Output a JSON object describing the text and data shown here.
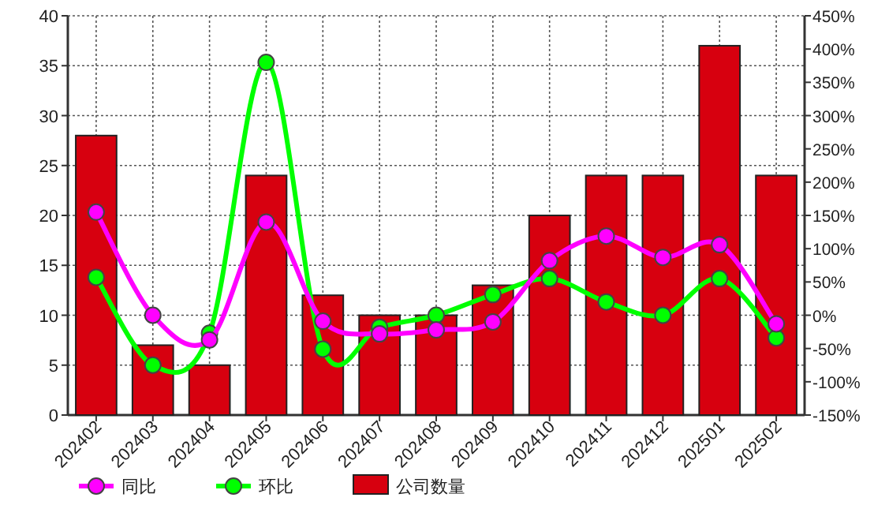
{
  "chart_data": {
    "type": "bar",
    "categories": [
      "202402",
      "202403",
      "202404",
      "202405",
      "202406",
      "202407",
      "202408",
      "202409",
      "202410",
      "202411",
      "202412",
      "202501",
      "202502"
    ],
    "series": [
      {
        "name": "同比",
        "type": "line",
        "axis": "y2",
        "color": "#ff00ff",
        "values": [
          155,
          0,
          -37,
          140,
          -9,
          -28,
          -22,
          -10,
          82,
          119,
          87,
          106,
          -13
        ]
      },
      {
        "name": "环比",
        "type": "line",
        "axis": "y2",
        "color": "#00ff00",
        "values": [
          57,
          -75,
          -27,
          380,
          -51,
          -18,
          0,
          31,
          55,
          20,
          0,
          55,
          -34
        ]
      },
      {
        "name": "公司数量",
        "type": "bar",
        "color": "#d7000f",
        "values": [
          28,
          7,
          5,
          24,
          12,
          10,
          10,
          13,
          20,
          24,
          24,
          37,
          24
        ]
      }
    ],
    "ylim": [
      0,
      40
    ],
    "yticks": [
      0,
      5,
      10,
      15,
      20,
      25,
      30,
      35,
      40
    ],
    "y2lim": [
      -150,
      450
    ],
    "y2ticks": [
      {
        "value": -150,
        "label": "-150%"
      },
      {
        "value": -100,
        "label": "-100%"
      },
      {
        "value": -50,
        "label": "-50%"
      },
      {
        "value": 0,
        "label": "0%"
      },
      {
        "value": 50,
        "label": "50%"
      },
      {
        "value": 100,
        "label": "100%"
      },
      {
        "value": 150,
        "label": "150%"
      },
      {
        "value": 200,
        "label": "200%"
      },
      {
        "value": 250,
        "label": "250%"
      },
      {
        "value": 300,
        "label": "300%"
      },
      {
        "value": 350,
        "label": "350%"
      },
      {
        "value": 400,
        "label": "400%"
      },
      {
        "value": 450,
        "label": "450%"
      }
    ],
    "grid": true,
    "legend": "bottom",
    "marker": "circle",
    "line_style": "solid"
  }
}
